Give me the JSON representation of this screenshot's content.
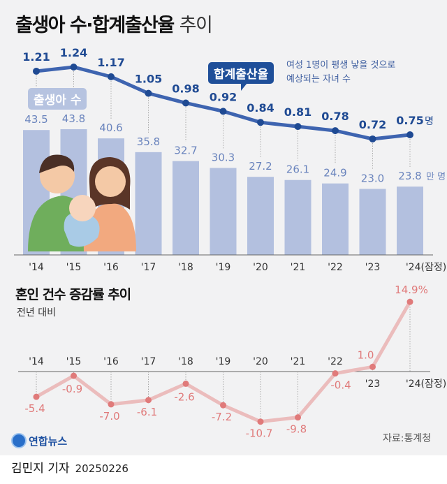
{
  "title": {
    "main": "출생아 수·합계출산율",
    "suffix": "추이"
  },
  "chart_data": [
    {
      "type": "bar+line",
      "categories": [
        "'14",
        "'15",
        "'16",
        "'17",
        "'18",
        "'19",
        "'20",
        "'21",
        "'22",
        "'23",
        "'24(잠정)"
      ],
      "series": [
        {
          "name": "출생아 수",
          "type": "bar",
          "unit": "만 명",
          "values": [
            43.5,
            43.8,
            40.6,
            35.8,
            32.7,
            30.3,
            27.2,
            26.1,
            24.9,
            23.0,
            23.8
          ],
          "labels": [
            "43.5",
            "43.8",
            "40.6",
            "35.8",
            "32.7",
            "30.3",
            "27.2",
            "26.1",
            "24.9",
            "23.0",
            "23.8"
          ]
        },
        {
          "name": "합계출산율",
          "type": "line",
          "unit": "명",
          "values": [
            1.21,
            1.24,
            1.17,
            1.05,
            0.98,
            0.92,
            0.84,
            0.81,
            0.78,
            0.72,
            0.75
          ],
          "labels": [
            "1.21",
            "1.24",
            "1.17",
            "1.05",
            "0.98",
            "0.92",
            "0.84",
            "0.81",
            "0.78",
            "0.72",
            "0.75"
          ]
        }
      ],
      "bar_unit_label": "만 명",
      "line_unit_label": "명",
      "annotation": "여성 1명이 평생 낳을 것으로\n예상되는 자녀 수",
      "colors": {
        "bar": "#b3c0df",
        "line": "#3e64b0",
        "bar_label": "#6a84bd",
        "line_label": "#1f4a93"
      }
    },
    {
      "type": "line",
      "title": "혼인 건수 증감률 추이",
      "subtitle": "전년 대비",
      "categories": [
        "'14",
        "'15",
        "'16",
        "'17",
        "'18",
        "'19",
        "'20",
        "'21",
        "'22",
        "'23",
        "'24(잠정)"
      ],
      "values": [
        -5.4,
        -0.9,
        -7.0,
        -6.1,
        -2.6,
        -7.2,
        -10.7,
        -9.8,
        -0.4,
        1.0,
        14.9
      ],
      "labels": [
        "-5.4",
        "-0.9",
        "-7.0",
        "-6.1",
        "-2.6",
        "-7.2",
        "-10.7",
        "-9.8",
        "-0.4",
        "1.0",
        "14.9%"
      ],
      "unit": "%",
      "colors": {
        "line": "#ebbcbc",
        "dot": "#e07a7a",
        "label": "#e07a7a"
      }
    }
  ],
  "footer": {
    "author": "김민지 기자",
    "date": "20250226",
    "source": "자료:통계청",
    "logo": "연합뉴스"
  }
}
